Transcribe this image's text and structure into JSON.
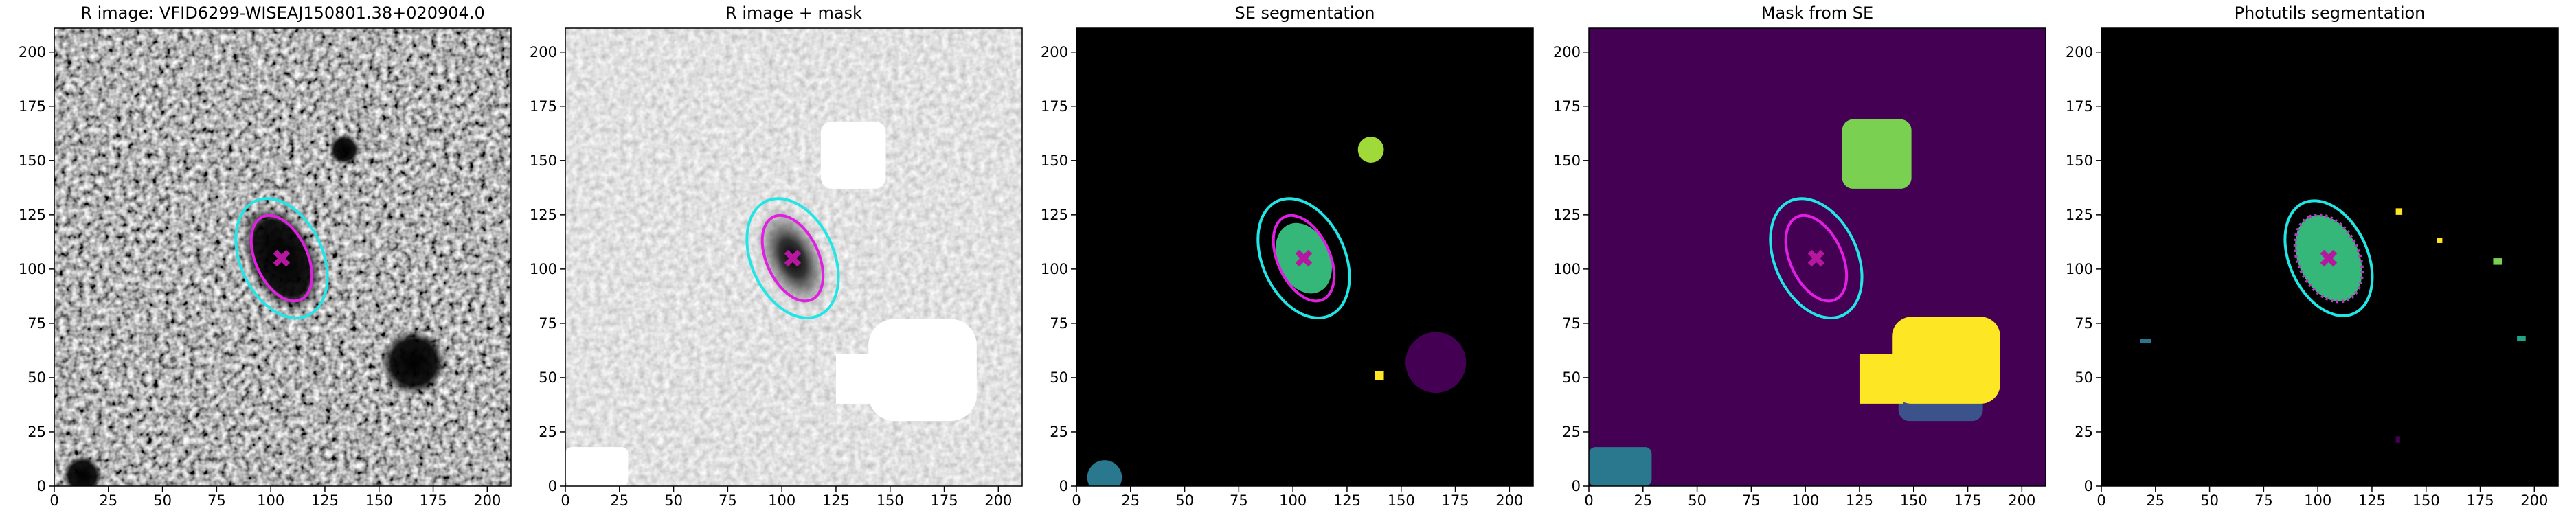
{
  "chart_data": [
    {
      "type": "image",
      "title": "R image: VFID6299-WISEAJ150801.38+020904.0",
      "xlim": [
        0,
        211
      ],
      "ylim": [
        0,
        211
      ],
      "xticks": [
        0,
        25,
        50,
        75,
        100,
        125,
        150,
        175,
        200
      ],
      "yticks": [
        0,
        25,
        50,
        75,
        100,
        125,
        150,
        175,
        200
      ],
      "ellipses": [
        {
          "color": "#22e5e5",
          "center": [
            105,
            105
          ],
          "a": 29,
          "b": 19,
          "angle": 115
        },
        {
          "color": "#e020e0",
          "center": [
            105,
            105
          ],
          "a": 21,
          "b": 12,
          "angle": 115
        }
      ],
      "marker": {
        "x": 105,
        "y": 105,
        "color": "#b5179e"
      }
    },
    {
      "type": "image",
      "title": "R image + mask",
      "xlim": [
        0,
        211
      ],
      "ylim": [
        0,
        211
      ],
      "xticks": [
        0,
        25,
        50,
        75,
        100,
        125,
        150,
        175,
        200
      ],
      "yticks": [
        0,
        25,
        50,
        75,
        100,
        125,
        150,
        175,
        200
      ],
      "ellipses": [
        {
          "color": "#22e5e5",
          "center": [
            105,
            105
          ],
          "a": 29,
          "b": 19,
          "angle": 115
        },
        {
          "color": "#e020e0",
          "center": [
            105,
            105
          ],
          "a": 21,
          "b": 12,
          "angle": 115
        }
      ],
      "marker": {
        "x": 105,
        "y": 105,
        "color": "#b5179e"
      }
    },
    {
      "type": "image",
      "title": "SE segmentation",
      "xlim": [
        0,
        211
      ],
      "ylim": [
        0,
        211
      ],
      "xticks": [
        0,
        25,
        50,
        75,
        100,
        125,
        150,
        175,
        200
      ],
      "yticks": [
        0,
        25,
        50,
        75,
        100,
        125,
        150,
        175,
        200
      ],
      "ellipses": [
        {
          "color": "#22e5e5",
          "center": [
            105,
            105
          ],
          "a": 29,
          "b": 19,
          "angle": 115
        },
        {
          "color": "#e020e0",
          "center": [
            105,
            105
          ],
          "a": 21,
          "b": 12,
          "angle": 115
        }
      ],
      "marker": {
        "x": 105,
        "y": 105,
        "color": "#b5179e"
      }
    },
    {
      "type": "image",
      "title": "Mask from SE",
      "xlim": [
        0,
        211
      ],
      "ylim": [
        0,
        211
      ],
      "xticks": [
        0,
        25,
        50,
        75,
        100,
        125,
        150,
        175,
        200
      ],
      "yticks": [
        0,
        25,
        50,
        75,
        100,
        125,
        150,
        175,
        200
      ],
      "ellipses": [
        {
          "color": "#22e5e5",
          "center": [
            105,
            105
          ],
          "a": 29,
          "b": 19,
          "angle": 115
        },
        {
          "color": "#e020e0",
          "center": [
            105,
            105
          ],
          "a": 21,
          "b": 12,
          "angle": 115
        }
      ],
      "marker": {
        "x": 105,
        "y": 105,
        "color": "#b5179e"
      }
    },
    {
      "type": "image",
      "title": "Photutils segmentation",
      "xlim": [
        0,
        211
      ],
      "ylim": [
        0,
        211
      ],
      "xticks": [
        0,
        25,
        50,
        75,
        100,
        125,
        150,
        175,
        200
      ],
      "yticks": [
        0,
        25,
        50,
        75,
        100,
        125,
        150,
        175,
        200
      ],
      "ellipses": [
        {
          "color": "#22e5e5",
          "center": [
            105,
            105
          ],
          "a": 28,
          "b": 18,
          "angle": 115
        }
      ],
      "marker": {
        "x": 105,
        "y": 105,
        "color": "#b5179e"
      }
    }
  ]
}
